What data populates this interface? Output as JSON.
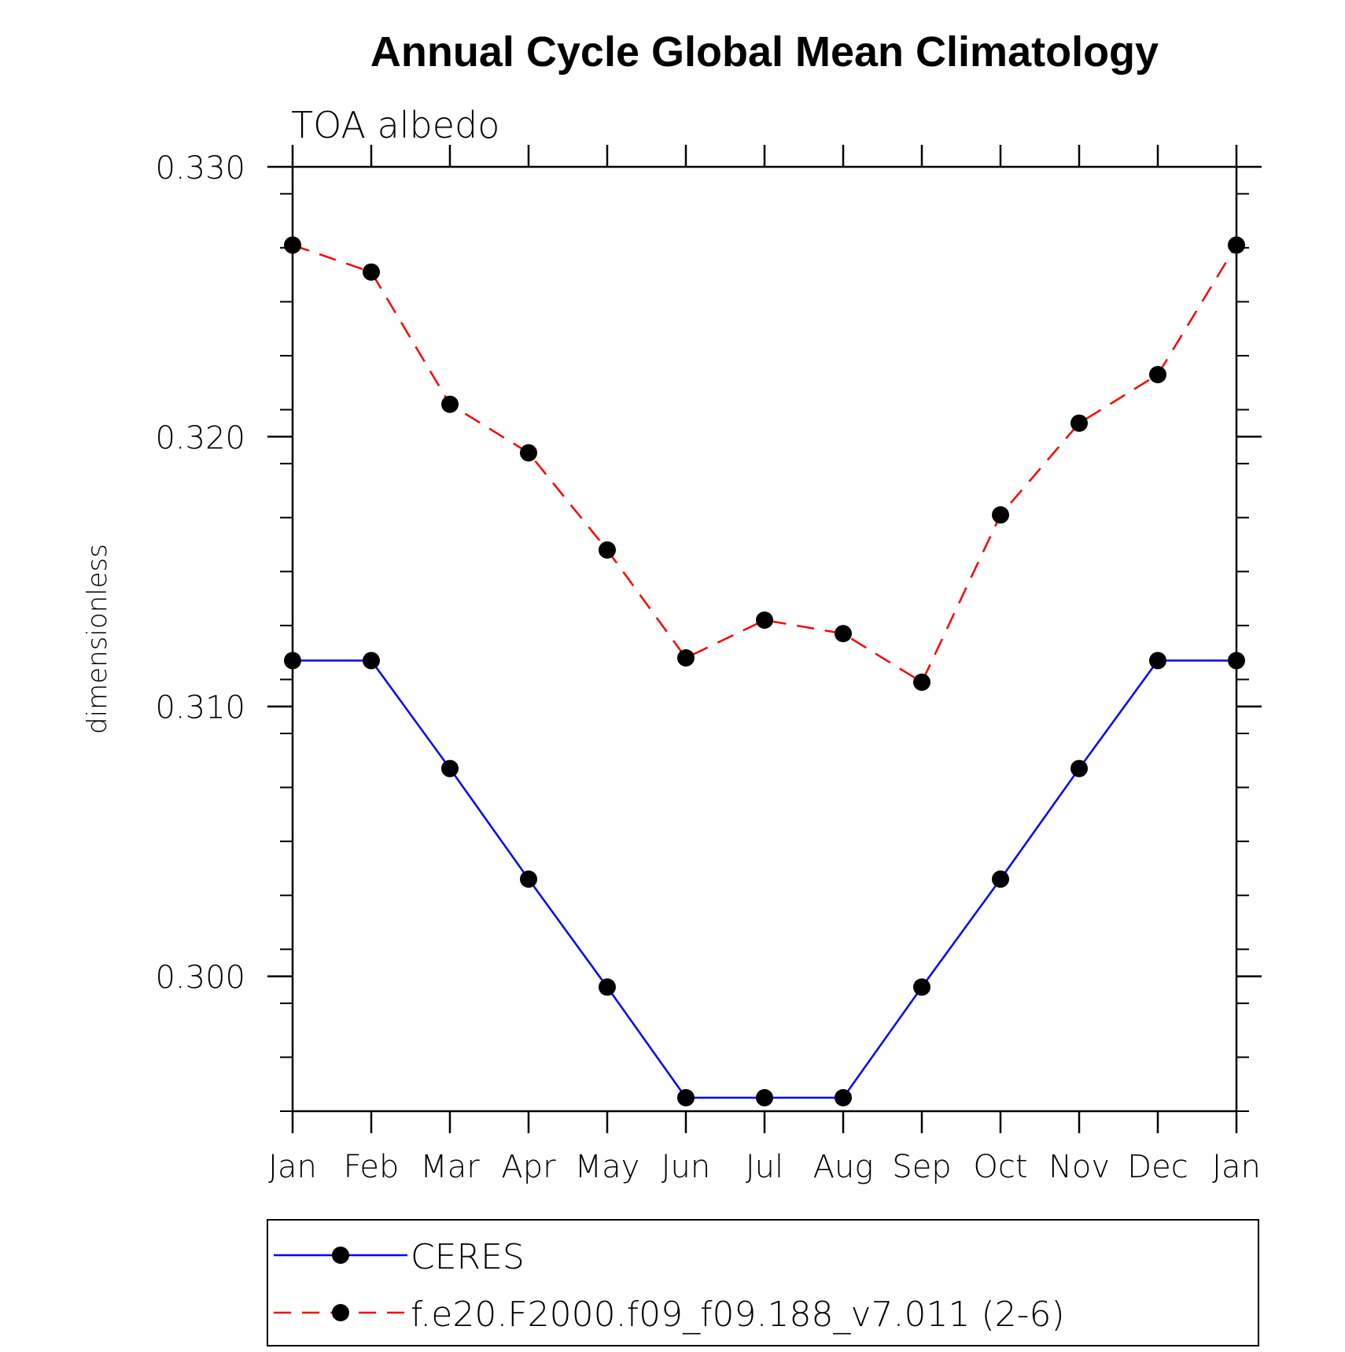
{
  "chart_data": {
    "type": "line",
    "title": "Annual Cycle Global Mean Climatology",
    "subtitle": "TOA albedo",
    "xlabel": "",
    "ylabel": "dimensionless",
    "categories": [
      "Jan",
      "Feb",
      "Mar",
      "Apr",
      "May",
      "Jun",
      "Jul",
      "Aug",
      "Sep",
      "Oct",
      "Nov",
      "Dec",
      "Jan"
    ],
    "ylim": [
      0.295,
      0.33
    ],
    "yticks": [
      0.3,
      0.31,
      0.32,
      0.33
    ],
    "ytick_labels": [
      "0.300",
      "0.310",
      "0.320",
      "0.330"
    ],
    "y_minor_step": 0.002,
    "grid": false,
    "legend_position": "bottom",
    "series": [
      {
        "name": "CERES",
        "color": "#0000ff",
        "dash": "solid",
        "marker": "filled-circle",
        "values": [
          0.3117,
          0.3117,
          0.3077,
          0.3036,
          0.2996,
          0.2955,
          0.2955,
          0.2955,
          0.2996,
          0.3036,
          0.3077,
          0.3117,
          0.3117
        ]
      },
      {
        "name": "f.e20.F2000.f09_f09.188_v7.011 (2-6)",
        "color": "#ff0000",
        "dash": "dashed",
        "marker": "filled-circle",
        "values": [
          0.3271,
          0.3261,
          0.3212,
          0.3194,
          0.3158,
          0.3118,
          0.3132,
          0.3127,
          0.3109,
          0.3171,
          0.3205,
          0.3223,
          0.3271
        ]
      }
    ]
  }
}
